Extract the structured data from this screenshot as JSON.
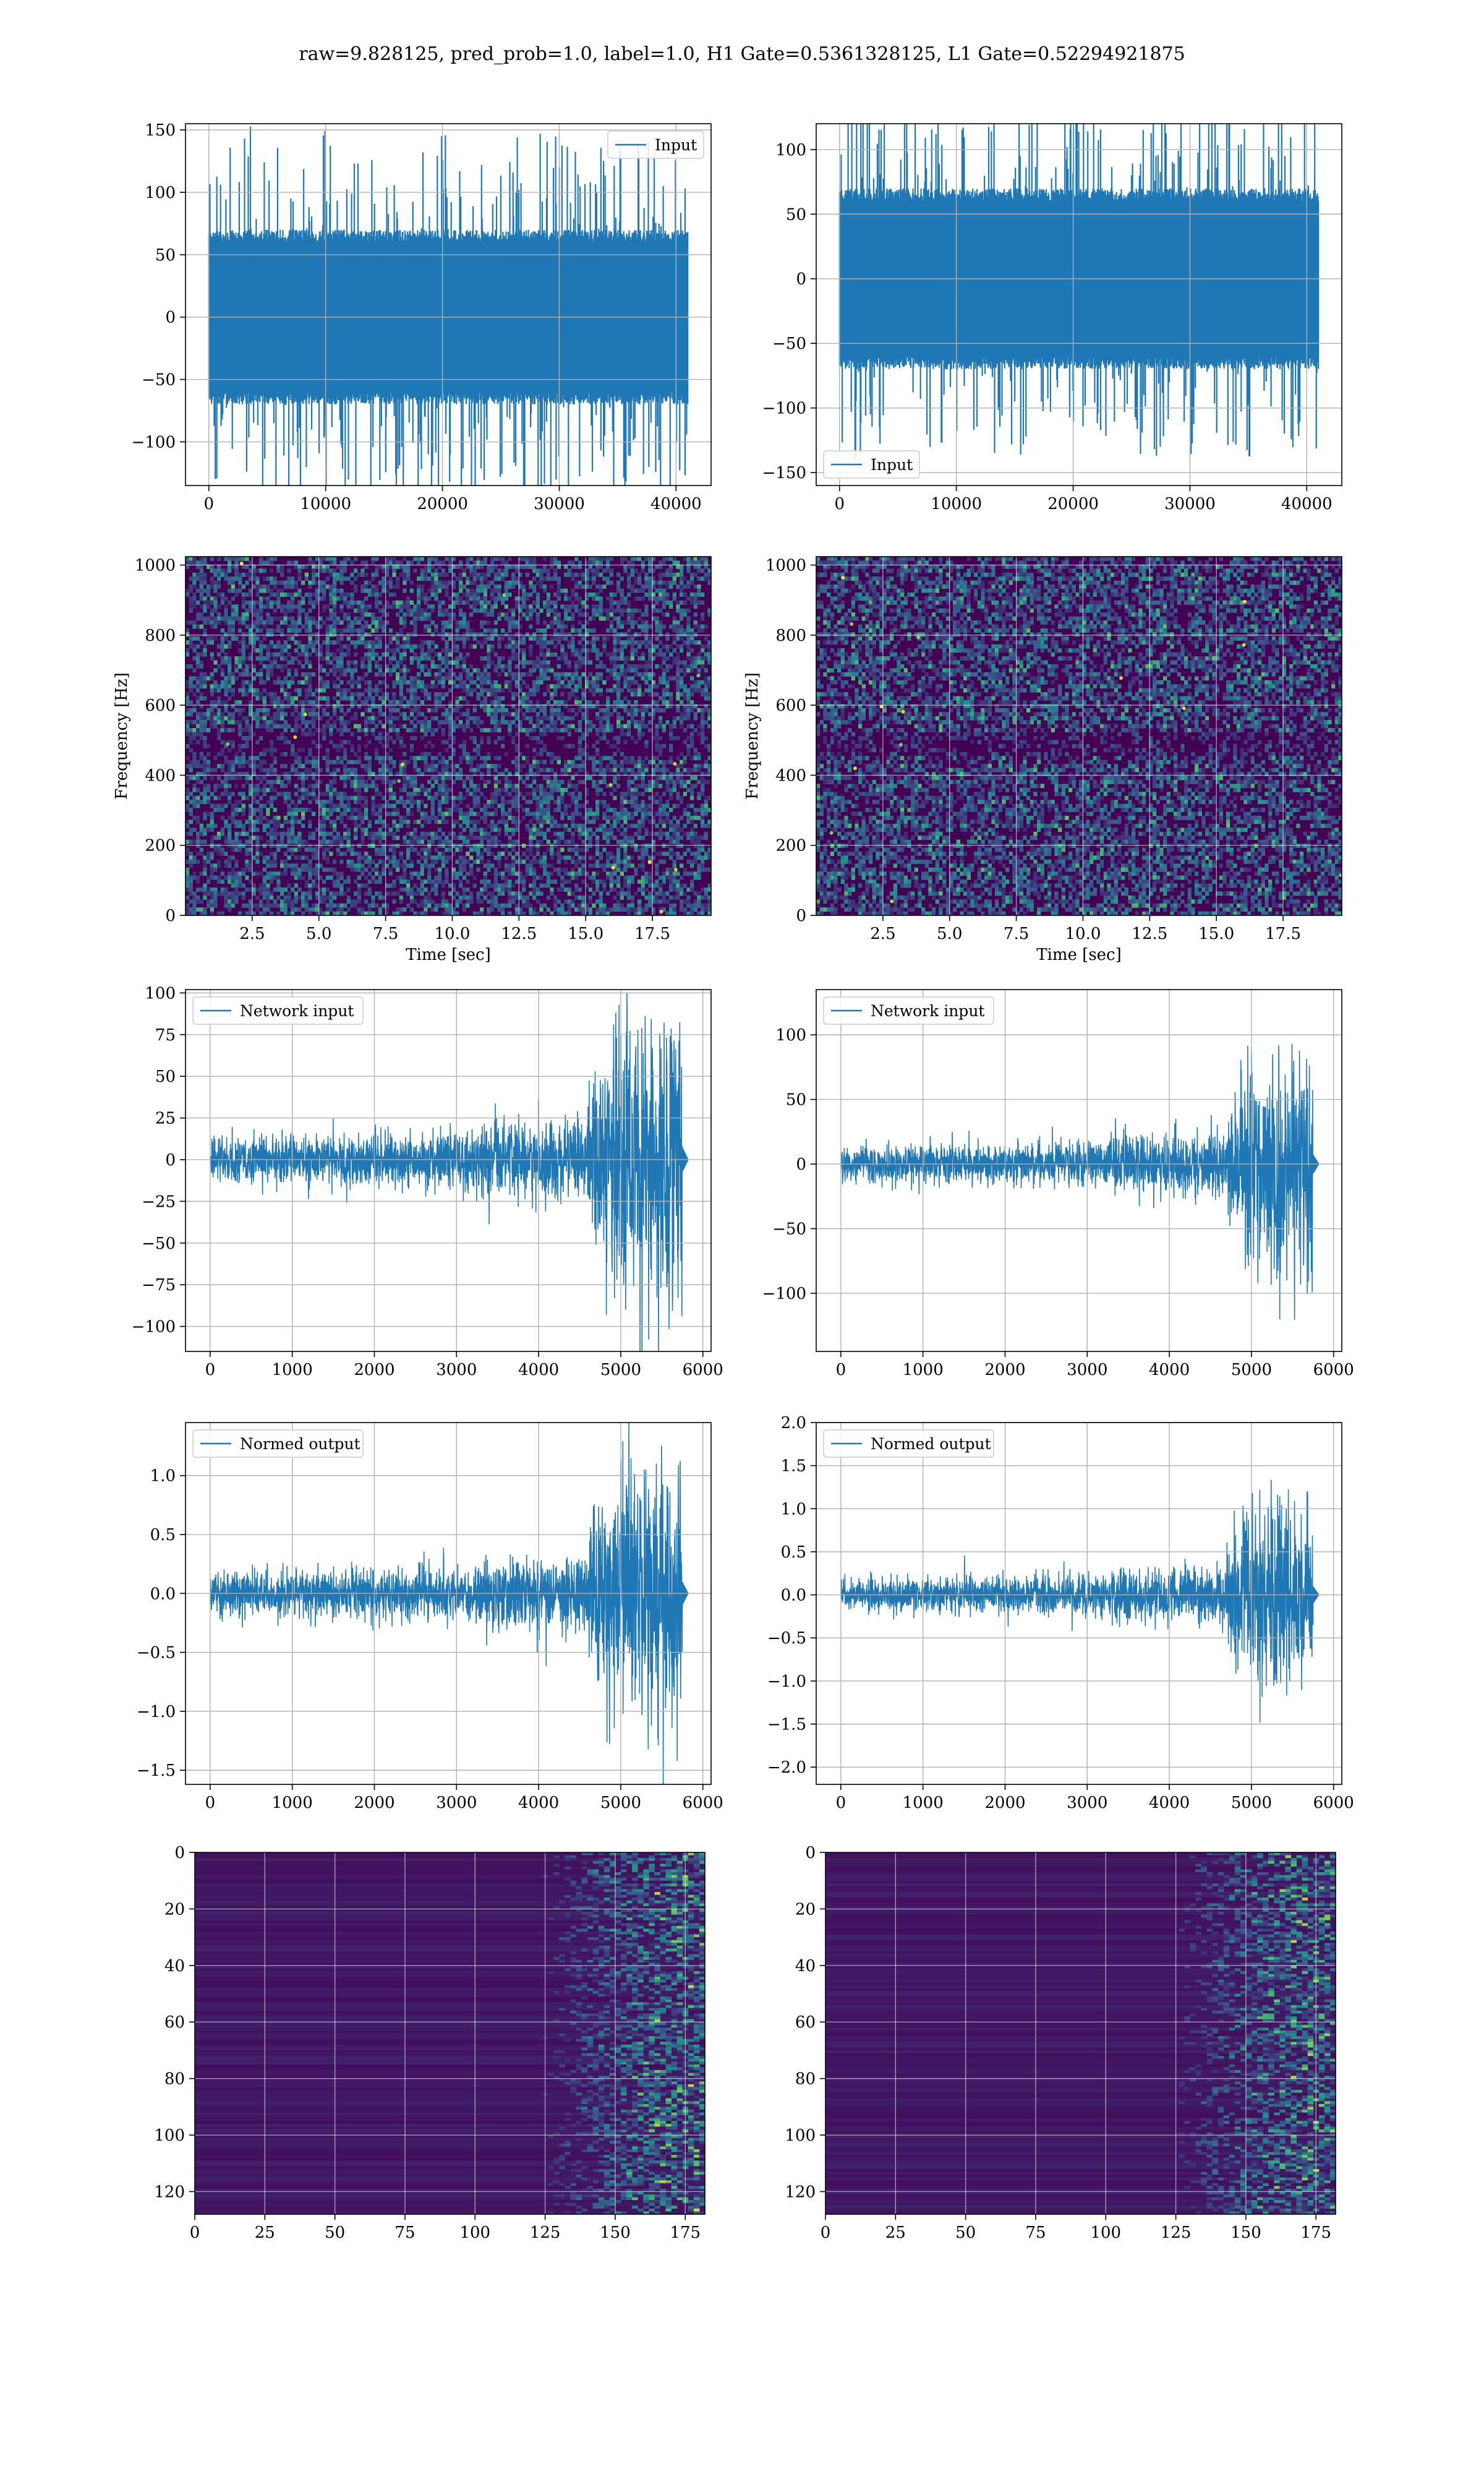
{
  "title": "raw=9.828125, pred_prob=1.0, label=1.0, H1 Gate=0.5361328125, L1 Gate=0.52294921875",
  "colors": {
    "line": "#1f77b4",
    "grid": "#b0b0b0",
    "spec_dark": "#440154",
    "spec_mid": "#31688e",
    "spec_bright": "#35b779",
    "spec_hot": "#fde725"
  },
  "chart_data": [
    {
      "id": "r0c0",
      "type": "line",
      "series": [
        {
          "name": "Input",
          "style": "noise",
          "amplitude": 60,
          "peak": 145
        }
      ],
      "legend": {
        "label": "Input",
        "placement": "upper right"
      },
      "xlim": [
        -2000,
        43000
      ],
      "ylim": [
        -135,
        155
      ],
      "xticks": [
        0,
        10000,
        20000,
        30000,
        40000
      ],
      "xtick_labels": [
        "0",
        "10000",
        "20000",
        "30000",
        "40000"
      ],
      "yticks": [
        150,
        100,
        50,
        0,
        -50,
        -100
      ],
      "ytick_labels": [
        "150",
        "100",
        "50",
        "0",
        "−50",
        "−100"
      ],
      "x_range": [
        0,
        41000
      ],
      "xlabel": "",
      "ylabel": "",
      "grid": true
    },
    {
      "id": "r0c1",
      "type": "line",
      "series": [
        {
          "name": "Input",
          "style": "noise",
          "amplitude": 60,
          "peak": 135
        }
      ],
      "legend": {
        "label": "Input",
        "placement": "lower left"
      },
      "xlim": [
        -2000,
        43000
      ],
      "ylim": [
        -160,
        120
      ],
      "xticks": [
        0,
        10000,
        20000,
        30000,
        40000
      ],
      "xtick_labels": [
        "0",
        "10000",
        "20000",
        "30000",
        "40000"
      ],
      "yticks": [
        100,
        50,
        0,
        -50,
        -100,
        -150
      ],
      "ytick_labels": [
        "100",
        "50",
        "0",
        "−50",
        "−100",
        "−150"
      ],
      "x_range": [
        0,
        41000
      ],
      "xlabel": "",
      "ylabel": "",
      "grid": true
    },
    {
      "id": "r1c0",
      "type": "heatmap",
      "style": "spectrogram",
      "xlim": [
        0,
        19.7
      ],
      "ylim": [
        0,
        1024
      ],
      "xticks": [
        2.5,
        5.0,
        7.5,
        10.0,
        12.5,
        15.0,
        17.5
      ],
      "xtick_labels": [
        "2.5",
        "5.0",
        "7.5",
        "10.0",
        "12.5",
        "15.0",
        "17.5"
      ],
      "yticks": [
        0,
        200,
        400,
        600,
        800,
        1000
      ],
      "ytick_labels": [
        "0",
        "200",
        "400",
        "600",
        "800",
        "1000"
      ],
      "xlabel": "Time [sec]",
      "ylabel": "Frequency [Hz]",
      "grid": true
    },
    {
      "id": "r1c1",
      "type": "heatmap",
      "style": "spectrogram",
      "xlim": [
        0,
        19.7
      ],
      "ylim": [
        0,
        1024
      ],
      "xticks": [
        2.5,
        5.0,
        7.5,
        10.0,
        12.5,
        15.0,
        17.5
      ],
      "xtick_labels": [
        "2.5",
        "5.0",
        "7.5",
        "10.0",
        "12.5",
        "15.0",
        "17.5"
      ],
      "yticks": [
        0,
        200,
        400,
        600,
        800,
        1000
      ],
      "ytick_labels": [
        "0",
        "200",
        "400",
        "600",
        "800",
        "1000"
      ],
      "xlabel": "Time [sec]",
      "ylabel": "Frequency [Hz]",
      "grid": true
    },
    {
      "id": "r2c0",
      "type": "line",
      "series": [
        {
          "name": "Network input",
          "style": "chirp",
          "base_amplitude": 12,
          "burst_start": 4600,
          "burst_amplitude": 80,
          "end": 5750,
          "tail_end": 5820
        }
      ],
      "legend": {
        "label": "Network input",
        "placement": "upper left"
      },
      "xlim": [
        -300,
        6100
      ],
      "ylim": [
        -115,
        102
      ],
      "xticks": [
        0,
        1000,
        2000,
        3000,
        4000,
        5000,
        6000
      ],
      "xtick_labels": [
        "0",
        "1000",
        "2000",
        "3000",
        "4000",
        "5000",
        "6000"
      ],
      "yticks": [
        100,
        75,
        50,
        25,
        0,
        -25,
        -50,
        -75,
        -100
      ],
      "ytick_labels": [
        "100",
        "75",
        "50",
        "25",
        "0",
        "−25",
        "−50",
        "−75",
        "−100"
      ],
      "xlabel": "",
      "ylabel": "",
      "grid": true
    },
    {
      "id": "r2c1",
      "type": "line",
      "series": [
        {
          "name": "Network input",
          "style": "chirp",
          "base_amplitude": 12,
          "burst_start": 4700,
          "burst_amplitude": 75,
          "end": 5750,
          "tail_end": 5820
        }
      ],
      "legend": {
        "label": "Network input",
        "placement": "upper left"
      },
      "xlim": [
        -300,
        6100
      ],
      "ylim": [
        -145,
        135
      ],
      "xticks": [
        0,
        1000,
        2000,
        3000,
        4000,
        5000,
        6000
      ],
      "xtick_labels": [
        "0",
        "1000",
        "2000",
        "3000",
        "4000",
        "5000",
        "6000"
      ],
      "yticks": [
        100,
        50,
        0,
        -50,
        -100
      ],
      "ytick_labels": [
        "100",
        "50",
        "0",
        "−50",
        "−100"
      ],
      "xlabel": "",
      "ylabel": "",
      "grid": true
    },
    {
      "id": "r3c0",
      "type": "line",
      "series": [
        {
          "name": "Normed output",
          "style": "chirp",
          "base_amplitude": 0.16,
          "burst_start": 4600,
          "burst_amplitude": 1.05,
          "end": 5750,
          "tail_end": 5820
        }
      ],
      "legend": {
        "label": "Normed output",
        "placement": "upper left"
      },
      "xlim": [
        -300,
        6100
      ],
      "ylim": [
        -1.62,
        1.45
      ],
      "xticks": [
        0,
        1000,
        2000,
        3000,
        4000,
        5000,
        6000
      ],
      "xtick_labels": [
        "0",
        "1000",
        "2000",
        "3000",
        "4000",
        "5000",
        "6000"
      ],
      "yticks": [
        1.0,
        0.5,
        0.0,
        -0.5,
        -1.0,
        -1.5
      ],
      "ytick_labels": [
        "1.0",
        "0.5",
        "0.0",
        "−0.5",
        "−1.0",
        "−1.5"
      ],
      "xlabel": "",
      "ylabel": "",
      "grid": true
    },
    {
      "id": "r3c1",
      "type": "line",
      "series": [
        {
          "name": "Normed output",
          "style": "chirp",
          "base_amplitude": 0.16,
          "burst_start": 4700,
          "burst_amplitude": 1.0,
          "end": 5750,
          "tail_end": 5820
        }
      ],
      "legend": {
        "label": "Normed output",
        "placement": "upper left"
      },
      "xlim": [
        -300,
        6100
      ],
      "ylim": [
        -2.2,
        2.0
      ],
      "xticks": [
        0,
        1000,
        2000,
        3000,
        4000,
        5000,
        6000
      ],
      "xtick_labels": [
        "0",
        "1000",
        "2000",
        "3000",
        "4000",
        "5000",
        "6000"
      ],
      "yticks": [
        2.0,
        1.5,
        1.0,
        0.5,
        0.0,
        -0.5,
        -1.0,
        -1.5,
        -2.0
      ],
      "ytick_labels": [
        "2.0",
        "1.5",
        "1.0",
        "0.5",
        "0.0",
        "−0.5",
        "−1.0",
        "−1.5",
        "−2.0"
      ],
      "xlabel": "",
      "ylabel": "",
      "grid": true
    },
    {
      "id": "r4c0",
      "type": "heatmap",
      "style": "feature-map",
      "rows": 128,
      "cols": 182,
      "activation_start": 125,
      "xlim": [
        0,
        182
      ],
      "ylim": [
        128,
        0
      ],
      "xticks": [
        0,
        25,
        50,
        75,
        100,
        125,
        150,
        175
      ],
      "xtick_labels": [
        "0",
        "25",
        "50",
        "75",
        "100",
        "125",
        "150",
        "175"
      ],
      "yticks": [
        0,
        20,
        40,
        60,
        80,
        100,
        120
      ],
      "ytick_labels": [
        "0",
        "20",
        "40",
        "60",
        "80",
        "100",
        "120"
      ],
      "xlabel": "",
      "ylabel": "",
      "grid": true
    },
    {
      "id": "r4c1",
      "type": "heatmap",
      "style": "feature-map",
      "rows": 128,
      "cols": 182,
      "activation_start": 125,
      "xlim": [
        0,
        182
      ],
      "ylim": [
        128,
        0
      ],
      "xticks": [
        0,
        25,
        50,
        75,
        100,
        125,
        150,
        175
      ],
      "xtick_labels": [
        "0",
        "25",
        "50",
        "75",
        "100",
        "125",
        "150",
        "175"
      ],
      "yticks": [
        0,
        20,
        40,
        60,
        80,
        100,
        120
      ],
      "ytick_labels": [
        "0",
        "20",
        "40",
        "60",
        "80",
        "100",
        "120"
      ],
      "xlabel": "",
      "ylabel": "",
      "grid": true
    }
  ]
}
